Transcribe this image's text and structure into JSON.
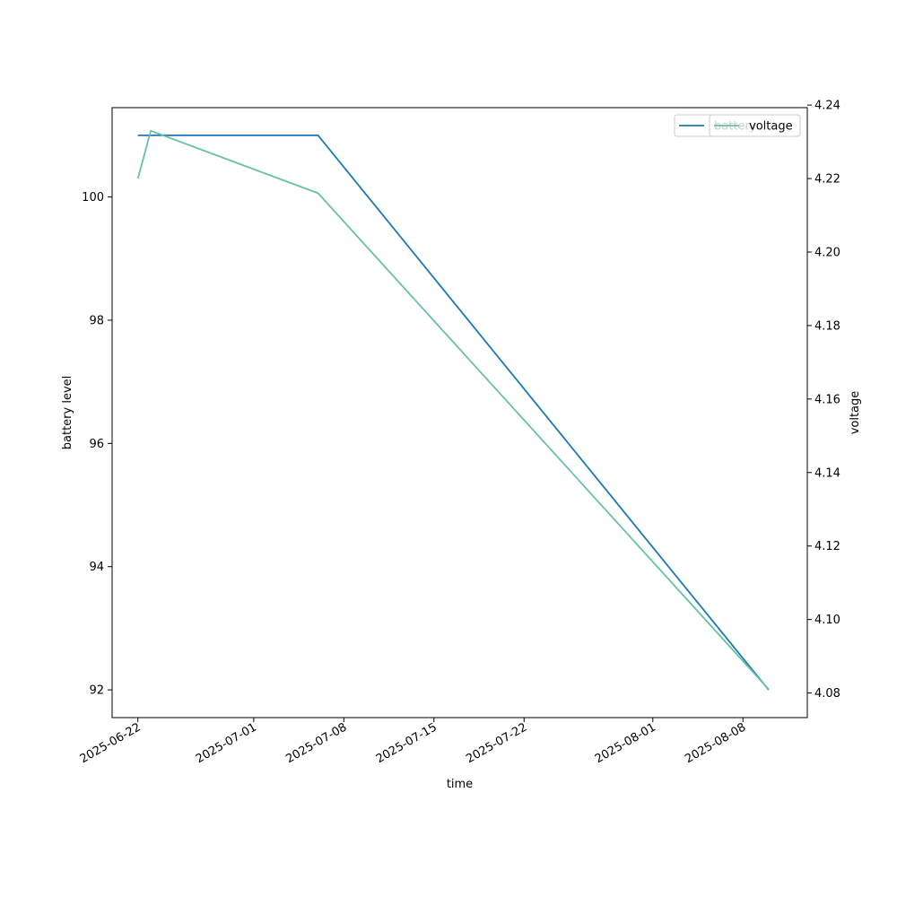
{
  "chart_data": {
    "type": "line",
    "xlabel": "time",
    "ylabel": "battery level",
    "y2label": "voltage",
    "xlim": [
      "2025-06-20",
      "2025-08-13"
    ],
    "ylim": [
      91.55,
      101.45
    ],
    "y2lim": [
      4.0733,
      4.2393
    ],
    "x_ticks": [
      "2025-06-22",
      "2025-07-01",
      "2025-07-08",
      "2025-07-15",
      "2025-07-22",
      "2025-08-01",
      "2025-08-08"
    ],
    "y_ticks": [
      92,
      94,
      96,
      98,
      100
    ],
    "y2_ticks": [
      4.08,
      4.1,
      4.12,
      4.14,
      4.16,
      4.18,
      4.2,
      4.22,
      4.24
    ],
    "series": [
      {
        "name": "battery",
        "axis": "left",
        "color": "#1f77b4",
        "x": [
          "2025-06-22",
          "2025-07-06",
          "2025-08-10"
        ],
        "values": [
          101,
          101,
          92
        ]
      },
      {
        "name": "voltage",
        "axis": "right",
        "color": "#66c2a5",
        "x": [
          "2025-06-22",
          "2025-06-23",
          "2025-07-06",
          "2025-08-10"
        ],
        "values": [
          4.22,
          4.233,
          4.216,
          4.081
        ]
      }
    ],
    "legends": [
      {
        "axis": "left",
        "placement": "upper-right",
        "labels": [
          "battery"
        ]
      },
      {
        "axis": "right",
        "placement": "upper-right",
        "labels": [
          "voltage"
        ]
      }
    ],
    "grid": false
  }
}
